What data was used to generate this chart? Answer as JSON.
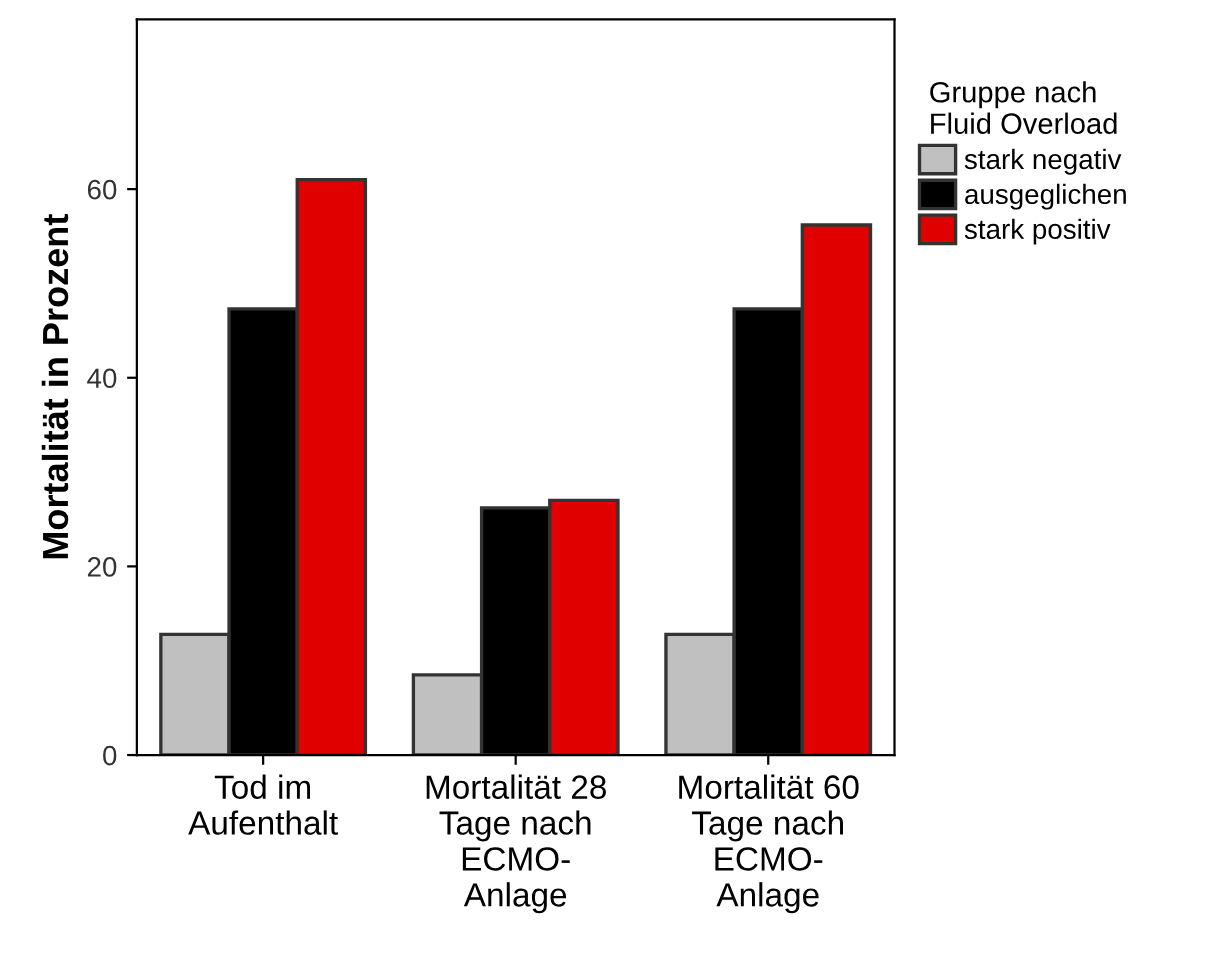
{
  "chart_data": {
    "type": "bar",
    "categories": [
      "Tod im\nAufenthalt",
      "Mortalität 28\nTage nach\nECMO-\nAnlage",
      "Mortalität 60\nTage nach\nECMO-\nAnlage"
    ],
    "series": [
      {
        "name": "stark negativ",
        "color": "#c0c0c0",
        "values": [
          12.8,
          8.5,
          12.8
        ]
      },
      {
        "name": "ausgeglichen",
        "color": "#000000",
        "values": [
          47.3,
          26.2,
          47.3
        ]
      },
      {
        "name": "stark positiv",
        "color": "#e00000",
        "values": [
          61.0,
          27.0,
          56.2
        ]
      }
    ],
    "ylabel": "Mortalität in Prozent",
    "legend_title": "Gruppe nach\nFluid Overload",
    "ylim": [
      0,
      78
    ],
    "yticks": [
      0,
      20,
      40,
      60
    ],
    "grid": false,
    "legend": "right"
  }
}
